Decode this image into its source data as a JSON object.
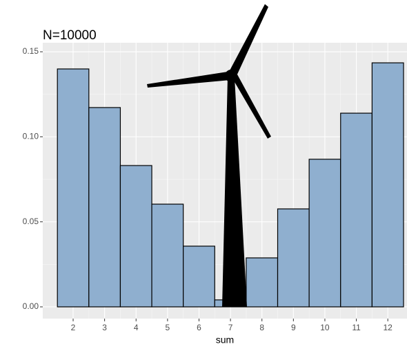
{
  "chart_data": {
    "type": "bar",
    "title": "N=10000",
    "x_label": "sum",
    "x": [
      2,
      3,
      4,
      5,
      6,
      7,
      8,
      9,
      10,
      11,
      12
    ],
    "values": [
      0.1399,
      0.1172,
      0.0831,
      0.0604,
      0.0357,
      0.0041,
      0.0288,
      0.0576,
      0.0868,
      0.1139,
      0.1435
    ],
    "color": "#8fafcf",
    "xlim": [
      1.035,
      12.61
    ],
    "xticks": [
      2,
      3,
      4,
      5,
      6,
      7,
      8,
      9,
      10,
      11,
      12
    ],
    "ylim": [
      -0.0069,
      0.1553
    ],
    "yticks": [
      {
        "value": 0,
        "label": "0.00"
      },
      {
        "value": 0.05,
        "label": "0.05"
      },
      {
        "value": 0.1,
        "label": "0.10"
      },
      {
        "value": 0.15,
        "label": "0.15"
      }
    ],
    "grid": true
  }
}
